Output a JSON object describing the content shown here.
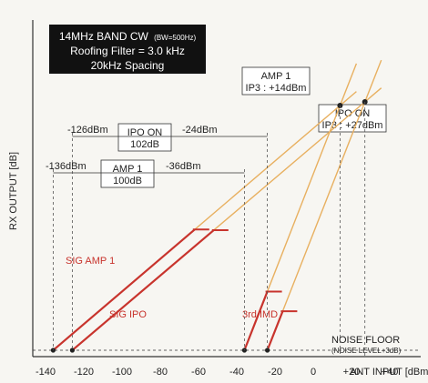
{
  "chart_data": {
    "type": "line",
    "title_lines": [
      "14MHz BAND CW",
      "Roofing Filter = 3.0 kHz",
      "20kHz Spacing"
    ],
    "title_bw_note": "(BW=500Hz)",
    "xlabel": "ANT INPUT [dBm]",
    "ylabel": "RX OUTPUT [dB]",
    "xlim": [
      -140,
      45
    ],
    "x_ticks": [
      "-140",
      "-120",
      "-100",
      "-80",
      "-60",
      "-40",
      "-20",
      "0",
      "+20",
      "+40"
    ],
    "x_tick_values": [
      -140,
      -120,
      -100,
      -80,
      -60,
      -40,
      -20,
      0,
      20,
      40
    ],
    "grid": false,
    "noise_floor": {
      "label": "NOISE FLOOR",
      "sublabel": "(NOISE LEVEL+3dB)"
    },
    "series": [
      {
        "name": "SIG AMP 1",
        "color": "#c8342d",
        "kind": "signal",
        "x_start": -136,
        "x_end": -62,
        "x_ext_end": 14
      },
      {
        "name": "SIG IPO",
        "color": "#c8342d",
        "kind": "signal",
        "x_start": -126,
        "x_end": -52,
        "x_ext_end": 27
      },
      {
        "name": "3rd IMD",
        "color": "#c8342d",
        "kind": "imd",
        "x_start": -36,
        "x_end": -24,
        "x_ext_end": 14
      },
      {
        "name": "",
        "color": "#c8342d",
        "kind": "imd",
        "x_start": -24,
        "x_end": -16,
        "x_ext_end": 27
      }
    ],
    "intercepts": [
      {
        "label_lines": [
          "AMP 1",
          "IP3 : +14dBm"
        ],
        "x": 14
      },
      {
        "label_lines": [
          "IPO ON",
          "IP3 : +27dBm"
        ],
        "x": 27
      }
    ],
    "ranges": [
      {
        "left": "-126dBm",
        "right": "-24dBm",
        "box_lines": [
          "IPO ON",
          "102dB"
        ],
        "x_left": -126,
        "x_right": -24
      },
      {
        "left": "-136dBm",
        "right": "-36dBm",
        "box_lines": [
          "AMP 1",
          "100dB"
        ],
        "x_left": -136,
        "x_right": -36
      }
    ],
    "colors": {
      "signal": "#c8342d",
      "extension": "#e8b060",
      "axis": "#333333",
      "title_box": "#111111"
    }
  }
}
